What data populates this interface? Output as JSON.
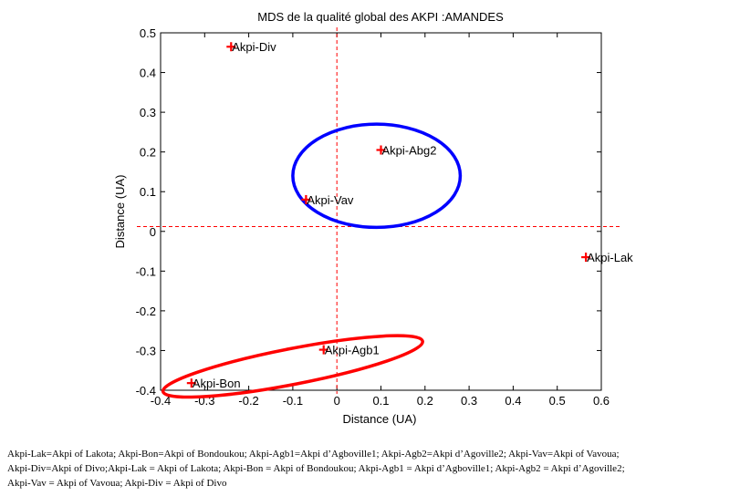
{
  "chart_data": {
    "type": "scatter",
    "title": "MDS de la qualité global des AKPI :AMANDES",
    "xlabel": "Distance (UA)",
    "ylabel": "Distance (UA)",
    "xlim": [
      -0.4,
      0.6
    ],
    "ylim": [
      -0.4,
      0.5
    ],
    "xticks": [
      -0.4,
      -0.3,
      -0.2,
      -0.1,
      0,
      0.1,
      0.2,
      0.3,
      0.4,
      0.5,
      0.6
    ],
    "xtick_labels": [
      "-0.4",
      "-0.3",
      "-0.2",
      "-0.1",
      "0",
      "0.1",
      "0.2",
      "0.3",
      "0.4",
      "0.5",
      "0.6"
    ],
    "yticks": [
      -0.4,
      -0.3,
      -0.2,
      -0.1,
      0,
      0.1,
      0.2,
      0.3,
      0.4,
      0.5
    ],
    "ytick_labels": [
      "-0.4",
      "-0.3",
      "-0.2",
      "-0.1",
      "0",
      "0.1",
      "0.2",
      "0.3",
      "0.4",
      "0.5"
    ],
    "grid": false,
    "marker": "+",
    "marker_color": "#ff0000",
    "points": [
      {
        "label": "Akpi-Div",
        "x": -0.24,
        "y": 0.465
      },
      {
        "label": "Akpi-Abg2",
        "x": 0.1,
        "y": 0.205
      },
      {
        "label": "Akpi-Vav",
        "x": -0.07,
        "y": 0.08
      },
      {
        "label": "Akpi-Lak",
        "x": 0.565,
        "y": -0.065
      },
      {
        "label": "Akpi-Agb1",
        "x": -0.03,
        "y": -0.298
      },
      {
        "label": "Akpi-Bon",
        "x": -0.33,
        "y": -0.382
      }
    ],
    "reference_lines": [
      {
        "orientation": "vertical",
        "value": 0,
        "style": "dashed",
        "color": "#ff0000"
      },
      {
        "orientation": "horizontal",
        "value": 0.012,
        "style": "dashed",
        "color": "#ff0000"
      }
    ],
    "groupings": [
      {
        "shape": "ellipse",
        "color": "#0000ff",
        "center": [
          0.09,
          0.14
        ],
        "rx": 0.19,
        "ry": 0.13,
        "rotation_deg": 0
      },
      {
        "shape": "ellipse",
        "color": "#ff0000",
        "center": [
          -0.1,
          -0.34
        ],
        "rx": 0.3,
        "ry": 0.045,
        "rotation_deg": 11
      }
    ]
  },
  "caption": {
    "lines": [
      "Akpi-Lak=Akpi of Lakota; Akpi-Bon=Akpi of Bondoukou; Akpi-Agb1=Akpi d’Agboville1; Akpi-Agb2=Akpi d’Agoville2; Akpi-Vav=Akpi of Vavoua;",
      "Akpi-Div=Akpi of Divo;Akpi-Lak = Akpi of Lakota; Akpi-Bon = Akpi of Bondoukou; Akpi-Agb1 = Akpi d’Agboville1; Akpi-Agb2 = Akpi d’Agoville2;",
      "Akpi-Vav = Akpi of Vavoua; Akpi-Div = Akpi of Divo"
    ]
  }
}
